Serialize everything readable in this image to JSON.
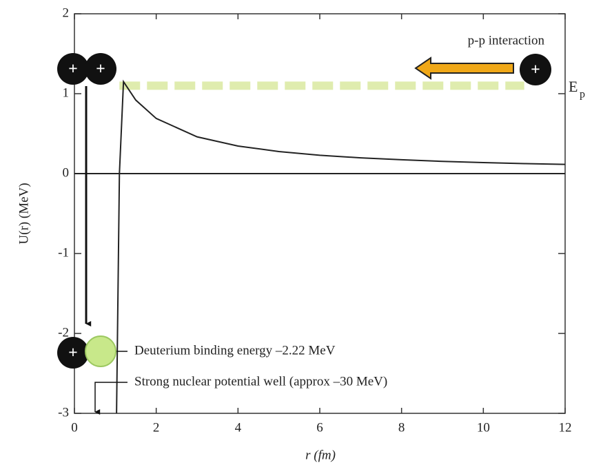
{
  "chart_data": {
    "type": "line",
    "x_label": "r (fm)",
    "y_label": "U(r) (MeV)",
    "xlim": [
      0,
      12
    ],
    "ylim": [
      -3,
      2
    ],
    "xticks": [
      0,
      2,
      4,
      6,
      8,
      10,
      12
    ],
    "yticks": [
      -3,
      -2,
      -1,
      0,
      1,
      2
    ],
    "series": [
      {
        "color": "#222222",
        "x": [
          1.03,
          1.1,
          1.2,
          1.5,
          2,
          3,
          4,
          5,
          6,
          7,
          8,
          9,
          10,
          11,
          12
        ],
        "values": [
          -3,
          0,
          1.15,
          0.92,
          0.69,
          0.46,
          0.345,
          0.276,
          0.23,
          0.197,
          0.173,
          0.153,
          0.138,
          0.125,
          0.115
        ]
      }
    ],
    "energy_level": {
      "value": 1.1,
      "x_start": 1.1,
      "x_end": 11,
      "color": "#d8e89a"
    },
    "annotations": {
      "pp_interaction": "p-p interaction",
      "ep_main": "E",
      "ep_sub": "p",
      "deuterium": "Deuterium binding energy –2.22 MeV",
      "well": "Strong nuclear potential well (approx –30 MeV)",
      "proton": "+"
    }
  }
}
